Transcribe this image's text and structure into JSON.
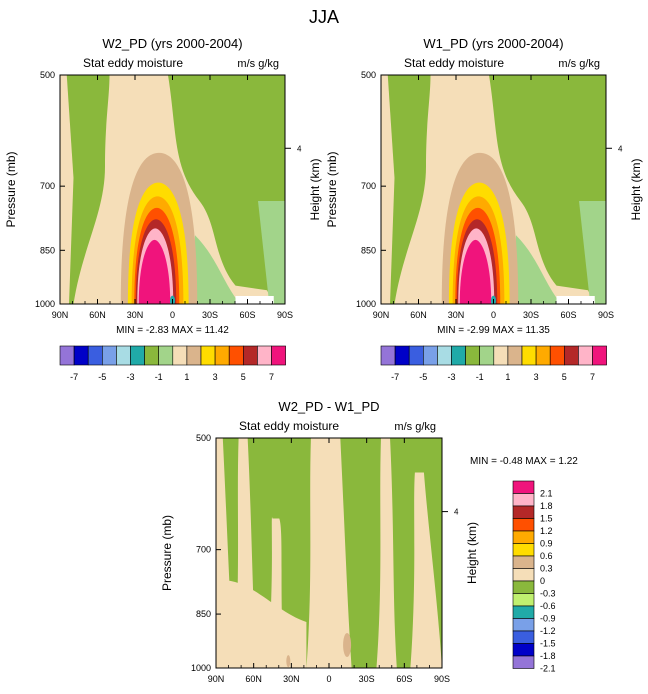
{
  "figure": {
    "title": "JJA"
  },
  "panel_labels": {
    "stat_label": "Stat eddy moisture",
    "units": "m/s g/kg",
    "ylabel_left": "Pressure (mb)",
    "ylabel_right": "Height (km)"
  },
  "colors": {
    "full_field": [
      "#9474d8",
      "#0000c8",
      "#3a5ee0",
      "#79a0e8",
      "#a8dce4",
      "#20aaa8",
      "#8ab83c",
      "#a2d48a",
      "#f5deb8",
      "#dab48c",
      "#ffdc00",
      "#ffaa00",
      "#ff5000",
      "#b42828",
      "#ffb4c8",
      "#f0147c"
    ],
    "difference": [
      "#9474d8",
      "#0000c8",
      "#3a5ee0",
      "#79a0e8",
      "#20aaa8",
      "#c0f070",
      "#8ab83c",
      "#f5deb8",
      "#dab48c",
      "#ffdc00",
      "#ffaa00",
      "#ff5000",
      "#b42828",
      "#ffb4c8",
      "#f0147c"
    ]
  },
  "chart_data": [
    {
      "type": "contour",
      "title": "W2_PD (yrs 2000-2004)",
      "x_ticks": [
        "90N",
        "60N",
        "30N",
        "0",
        "30S",
        "60S",
        "90S"
      ],
      "x_range": [
        90,
        -90
      ],
      "y_ticks": [
        500,
        700,
        850,
        1000
      ],
      "y_range_mb": [
        1000,
        500
      ],
      "height_ticks": [
        "4"
      ],
      "stats": {
        "min_label": "MIN =",
        "min": "-2.83",
        "max_label": "MAX =",
        "max": "11.42"
      },
      "colorbar": {
        "orientation": "horizontal",
        "labels": [
          "-7",
          "-5",
          "-3",
          "-1",
          "1",
          "3",
          "5",
          "7"
        ]
      },
      "peak": {
        "lat": 33,
        "p_mb": 900,
        "value": 11.42
      }
    },
    {
      "type": "contour",
      "title": "W1_PD (yrs 2000-2004)",
      "x_ticks": [
        "90N",
        "60N",
        "30N",
        "0",
        "30S",
        "60S",
        "90S"
      ],
      "x_range": [
        90,
        -90
      ],
      "y_ticks": [
        500,
        700,
        850,
        1000
      ],
      "y_range_mb": [
        1000,
        500
      ],
      "height_ticks": [
        "4"
      ],
      "stats": {
        "min_label": "MIN =",
        "min": "-2.99",
        "max_label": "MAX =",
        "max": "11.35"
      },
      "colorbar": {
        "orientation": "horizontal",
        "labels": [
          "-7",
          "-5",
          "-3",
          "-1",
          "1",
          "3",
          "5",
          "7"
        ]
      },
      "peak": {
        "lat": 33,
        "p_mb": 900,
        "value": 11.35
      }
    },
    {
      "type": "contour",
      "title": "W2_PD - W1_PD",
      "x_ticks": [
        "90N",
        "60N",
        "30N",
        "0",
        "30S",
        "60S",
        "90S"
      ],
      "x_range": [
        90,
        -90
      ],
      "y_ticks": [
        500,
        700,
        850,
        1000
      ],
      "y_range_mb": [
        1000,
        500
      ],
      "height_ticks": [
        "4"
      ],
      "stats": {
        "min_label": "MIN =",
        "min": "-0.48",
        "max_label": "MAX =",
        "max": "1.22"
      },
      "colorbar": {
        "orientation": "vertical",
        "labels": [
          "2.1",
          "1.8",
          "1.5",
          "1.2",
          "0.9",
          "0.6",
          "0.3",
          "0",
          "-0.3",
          "-0.6",
          "-0.9",
          "-1.2",
          "-1.5",
          "-1.8",
          "-2.1"
        ]
      }
    }
  ]
}
